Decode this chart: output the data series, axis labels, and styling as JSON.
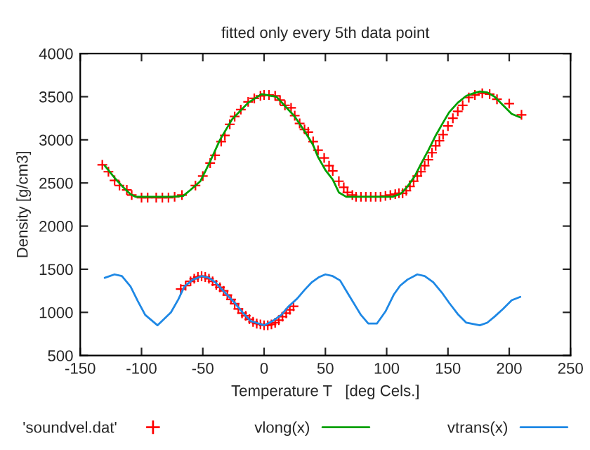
{
  "chart_data": {
    "type": "line",
    "title": "fitted only every 5th data point",
    "xlabel": "Temperature T   [deg Cels.]",
    "ylabel": "Density [g/cm3]",
    "xlim": [
      -150,
      250
    ],
    "xticks": [
      -150,
      -100,
      -50,
      0,
      50,
      100,
      150,
      200,
      250
    ],
    "ylim": [
      500,
      4000
    ],
    "yticks": [
      500,
      1000,
      1500,
      2000,
      2500,
      3000,
      3500,
      4000
    ],
    "grid": false,
    "legend": "bottom",
    "series": [
      {
        "name": "'soundvel.dat'",
        "type": "scatter",
        "marker": "cross",
        "color": "#ff0000",
        "x": [
          -132,
          -127,
          -122,
          -118,
          -112,
          -108,
          -100,
          -95,
          -88,
          -83,
          -78,
          -73,
          -67,
          -56,
          -50,
          -44,
          -40,
          -35,
          -32,
          -28,
          -24,
          -19,
          -13,
          -8,
          -3,
          0,
          4,
          9,
          13,
          17,
          22,
          25,
          29,
          33,
          36,
          40,
          44,
          49,
          53,
          56,
          61,
          65,
          68,
          72,
          75,
          79,
          83,
          87,
          91,
          95,
          99,
          103,
          107,
          110,
          113,
          116,
          119,
          122,
          125,
          128,
          131,
          134,
          137,
          140,
          143,
          146,
          150,
          154,
          158,
          162,
          167,
          172,
          178,
          184,
          190,
          200,
          210,
          -68,
          -64,
          -60,
          -57,
          -54,
          -51,
          -48,
          -45,
          -42,
          -39,
          -36,
          -33,
          -30,
          -27,
          -24,
          -21,
          -18,
          -15,
          -12,
          -9,
          -6,
          -3,
          0,
          3,
          6,
          9,
          12,
          15,
          18,
          21,
          24
        ],
        "values": [
          2710,
          2630,
          2530,
          2470,
          2420,
          2360,
          2330,
          2330,
          2330,
          2330,
          2330,
          2340,
          2360,
          2470,
          2580,
          2730,
          2820,
          2980,
          3050,
          3180,
          3270,
          3350,
          3440,
          3480,
          3510,
          3520,
          3520,
          3510,
          3460,
          3400,
          3370,
          3280,
          3190,
          3120,
          3090,
          2980,
          2880,
          2790,
          2700,
          2640,
          2520,
          2450,
          2390,
          2360,
          2340,
          2340,
          2340,
          2340,
          2340,
          2340,
          2350,
          2360,
          2370,
          2380,
          2380,
          2410,
          2460,
          2520,
          2580,
          2630,
          2700,
          2770,
          2850,
          2930,
          2990,
          3060,
          3160,
          3250,
          3330,
          3400,
          3490,
          3520,
          3540,
          3530,
          3470,
          3420,
          3290,
          1270,
          1310,
          1360,
          1390,
          1410,
          1420,
          1410,
          1390,
          1360,
          1320,
          1290,
          1250,
          1200,
          1150,
          1100,
          1040,
          990,
          960,
          920,
          890,
          870,
          860,
          850,
          850,
          860,
          880,
          910,
          950,
          990,
          1030,
          1070
        ]
      },
      {
        "name": "vlong(x)",
        "color": "#00a000",
        "line_style": "solid",
        "x": [
          -130,
          -122,
          -115,
          -109,
          -105,
          -90,
          -75,
          -66,
          -60,
          -52,
          -44,
          -36,
          -26,
          -13,
          -2,
          10,
          25,
          33,
          40,
          44,
          50,
          56,
          61,
          67,
          80,
          95,
          105,
          112,
          117,
          123,
          128,
          134,
          140,
          146,
          151,
          158,
          165,
          171,
          176,
          182,
          188,
          195,
          202,
          209
        ],
        "values": [
          2700,
          2560,
          2450,
          2370,
          2340,
          2340,
          2340,
          2350,
          2420,
          2520,
          2750,
          3000,
          3240,
          3430,
          3530,
          3500,
          3270,
          3100,
          2940,
          2800,
          2650,
          2540,
          2390,
          2340,
          2340,
          2340,
          2340,
          2380,
          2460,
          2580,
          2720,
          2880,
          3050,
          3200,
          3320,
          3430,
          3510,
          3540,
          3560,
          3550,
          3500,
          3400,
          3300,
          3260
        ]
      },
      {
        "name": "vtrans(x)",
        "color": "#1e88e5",
        "line_style": "solid",
        "x": [
          -130,
          -122,
          -116,
          -109,
          -103,
          -97,
          -87,
          -76,
          -70,
          -65,
          -58,
          -51,
          -45,
          -40,
          -32,
          -24,
          -17,
          -11,
          0,
          7,
          14,
          20,
          27,
          33,
          39,
          45,
          50,
          56,
          62,
          67,
          73,
          79,
          85,
          92,
          99,
          106,
          111,
          117,
          125,
          131,
          138,
          145,
          151,
          158,
          165,
          176,
          182,
          188,
          195,
          202,
          209
        ],
        "values": [
          1400,
          1440,
          1420,
          1300,
          1130,
          970,
          850,
          1000,
          1150,
          1300,
          1380,
          1420,
          1400,
          1350,
          1230,
          1110,
          990,
          900,
          850,
          900,
          970,
          1070,
          1160,
          1260,
          1350,
          1410,
          1440,
          1420,
          1370,
          1250,
          1110,
          970,
          870,
          870,
          1010,
          1210,
          1310,
          1380,
          1440,
          1420,
          1350,
          1230,
          1110,
          980,
          880,
          850,
          880,
          950,
          1040,
          1140,
          1180
        ]
      }
    ]
  }
}
